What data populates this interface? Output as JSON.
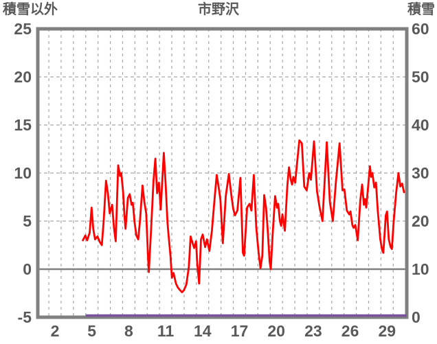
{
  "chart": {
    "left_axis_title": "積雪以外",
    "title": "市野沢",
    "right_axis_title": "積雪"
  },
  "chart_data": {
    "type": "line",
    "title": "市野沢",
    "x_axis": {
      "range": [
        0.6,
        30.6
      ],
      "tick_labels": [
        2,
        5,
        8,
        11,
        14,
        17,
        20,
        23,
        26,
        29
      ],
      "gridline_interval_days": 1
    },
    "left_axis": {
      "label": "積雪以外",
      "range": [
        -5,
        25
      ],
      "ticks": [
        25,
        20,
        15,
        10,
        5,
        0,
        -5
      ]
    },
    "right_axis": {
      "label": "積雪",
      "range": [
        0,
        60
      ],
      "ticks": [
        60,
        50,
        40,
        30,
        20,
        10,
        0
      ]
    },
    "zero_line_value": 0,
    "grid": true,
    "legend_position": "none",
    "series": [
      {
        "name": "積雪以外",
        "axis": "left",
        "color": "#FF0000",
        "points": [
          [
            4.27,
            3.0
          ],
          [
            4.47,
            3.5
          ],
          [
            4.62,
            3.0
          ],
          [
            4.82,
            3.8
          ],
          [
            4.98,
            6.4
          ],
          [
            5.11,
            4.2
          ],
          [
            5.26,
            3.1
          ],
          [
            5.46,
            3.4
          ],
          [
            5.66,
            2.8
          ],
          [
            5.81,
            2.5
          ],
          [
            5.96,
            5.0
          ],
          [
            6.15,
            9.2
          ],
          [
            6.3,
            7.9
          ],
          [
            6.45,
            5.8
          ],
          [
            6.65,
            6.7
          ],
          [
            6.8,
            4.3
          ],
          [
            6.94,
            2.9
          ],
          [
            7.14,
            10.8
          ],
          [
            7.29,
            9.7
          ],
          [
            7.39,
            10.0
          ],
          [
            7.54,
            8.0
          ],
          [
            7.64,
            5.7
          ],
          [
            7.74,
            4.2
          ],
          [
            7.93,
            7.4
          ],
          [
            8.08,
            7.8
          ],
          [
            8.23,
            6.7
          ],
          [
            8.33,
            6.9
          ],
          [
            8.48,
            4.8
          ],
          [
            8.62,
            3.5
          ],
          [
            8.77,
            3.1
          ],
          [
            8.92,
            5.2
          ],
          [
            9.12,
            8.7
          ],
          [
            9.27,
            7.0
          ],
          [
            9.42,
            5.8
          ],
          [
            9.56,
            1.5
          ],
          [
            9.63,
            -0.3
          ],
          [
            9.81,
            4.0
          ],
          [
            10.01,
            9.2
          ],
          [
            10.16,
            11.5
          ],
          [
            10.31,
            7.9
          ],
          [
            10.45,
            9.0
          ],
          [
            10.6,
            6.2
          ],
          [
            10.85,
            12.1
          ],
          [
            11.0,
            8.8
          ],
          [
            11.15,
            4.8
          ],
          [
            11.25,
            3.3
          ],
          [
            11.39,
            1.4
          ],
          [
            11.51,
            -0.9
          ],
          [
            11.64,
            -0.4
          ],
          [
            11.84,
            -1.5
          ],
          [
            11.99,
            -1.9
          ],
          [
            12.18,
            -2.2
          ],
          [
            12.33,
            -2.4
          ],
          [
            12.48,
            -2.2
          ],
          [
            12.68,
            -1.6
          ],
          [
            12.88,
            0.2
          ],
          [
            13.03,
            3.4
          ],
          [
            13.17,
            2.8
          ],
          [
            13.32,
            2.2
          ],
          [
            13.47,
            2.9
          ],
          [
            13.57,
            0.6
          ],
          [
            13.72,
            -1.5
          ],
          [
            13.87,
            3.1
          ],
          [
            14.01,
            3.6
          ],
          [
            14.21,
            2.3
          ],
          [
            14.36,
            3.1
          ],
          [
            14.56,
            1.9
          ],
          [
            14.76,
            4.0
          ],
          [
            14.95,
            6.9
          ],
          [
            15.15,
            9.8
          ],
          [
            15.3,
            8.6
          ],
          [
            15.45,
            7.2
          ],
          [
            15.65,
            2.7
          ],
          [
            15.89,
            7.6
          ],
          [
            16.14,
            9.9
          ],
          [
            16.34,
            7.7
          ],
          [
            16.49,
            6.3
          ],
          [
            16.63,
            5.6
          ],
          [
            16.83,
            6.1
          ],
          [
            17.08,
            9.5
          ],
          [
            17.28,
            1.7
          ],
          [
            17.38,
            1.4
          ],
          [
            17.62,
            6.4
          ],
          [
            17.82,
            6.8
          ],
          [
            17.97,
            6.1
          ],
          [
            18.17,
            9.8
          ],
          [
            18.37,
            4.3
          ],
          [
            18.56,
            1.7
          ],
          [
            18.71,
            0.1
          ],
          [
            18.86,
            1.4
          ],
          [
            19.01,
            7.7
          ],
          [
            19.16,
            6.4
          ],
          [
            19.3,
            4.0
          ],
          [
            19.45,
            0.8
          ],
          [
            19.55,
            0.0
          ],
          [
            19.7,
            3.6
          ],
          [
            19.9,
            7.6
          ],
          [
            20.05,
            6.4
          ],
          [
            20.15,
            6.8
          ],
          [
            20.29,
            5.0
          ],
          [
            20.39,
            4.5
          ],
          [
            20.49,
            5.7
          ],
          [
            20.69,
            4.0
          ],
          [
            20.89,
            8.6
          ],
          [
            21.03,
            10.6
          ],
          [
            21.18,
            9.3
          ],
          [
            21.28,
            8.8
          ],
          [
            21.38,
            9.6
          ],
          [
            21.53,
            9.0
          ],
          [
            21.68,
            11.0
          ],
          [
            21.87,
            13.4
          ],
          [
            22.07,
            13.1
          ],
          [
            22.27,
            8.6
          ],
          [
            22.47,
            8.2
          ],
          [
            22.67,
            10.0
          ],
          [
            22.81,
            9.3
          ],
          [
            23.06,
            13.3
          ],
          [
            23.31,
            8.1
          ],
          [
            23.51,
            6.5
          ],
          [
            23.75,
            5.0
          ],
          [
            24.1,
            13.2
          ],
          [
            24.35,
            7.0
          ],
          [
            24.59,
            5.0
          ],
          [
            24.84,
            9.0
          ],
          [
            25.14,
            13.1
          ],
          [
            25.38,
            8.2
          ],
          [
            25.53,
            8.3
          ],
          [
            25.73,
            6.1
          ],
          [
            25.93,
            5.7
          ],
          [
            26.03,
            6.0
          ],
          [
            26.18,
            4.6
          ],
          [
            26.28,
            4.3
          ],
          [
            26.42,
            4.6
          ],
          [
            26.62,
            3.0
          ],
          [
            26.82,
            7.1
          ],
          [
            26.97,
            8.8
          ],
          [
            27.12,
            6.7
          ],
          [
            27.21,
            7.3
          ],
          [
            27.31,
            6.4
          ],
          [
            27.61,
            10.7
          ],
          [
            27.71,
            9.6
          ],
          [
            27.81,
            10.0
          ],
          [
            27.96,
            8.5
          ],
          [
            28.1,
            9.0
          ],
          [
            28.25,
            6.0
          ],
          [
            28.45,
            3.1
          ],
          [
            28.6,
            2.0
          ],
          [
            28.7,
            1.7
          ],
          [
            28.9,
            5.6
          ],
          [
            29.0,
            6.0
          ],
          [
            29.14,
            3.1
          ],
          [
            29.29,
            2.3
          ],
          [
            29.39,
            2.1
          ],
          [
            29.54,
            5.0
          ],
          [
            29.74,
            7.9
          ],
          [
            29.93,
            10.0
          ],
          [
            30.08,
            8.6
          ],
          [
            30.23,
            8.9
          ],
          [
            30.38,
            8.0
          ]
        ]
      },
      {
        "name": "積雪",
        "axis": "right",
        "color": "#7B52A0",
        "points": [
          [
            4.5,
            0
          ],
          [
            30.6,
            0
          ]
        ]
      }
    ]
  },
  "colors": {
    "series_red": "#FF0000",
    "series_purple": "#7B52A0",
    "axis_border": "#808080",
    "gridline": "#A6A6A6",
    "zero_line": "#808080",
    "text": "#595959",
    "background": "#FFFFFF"
  }
}
